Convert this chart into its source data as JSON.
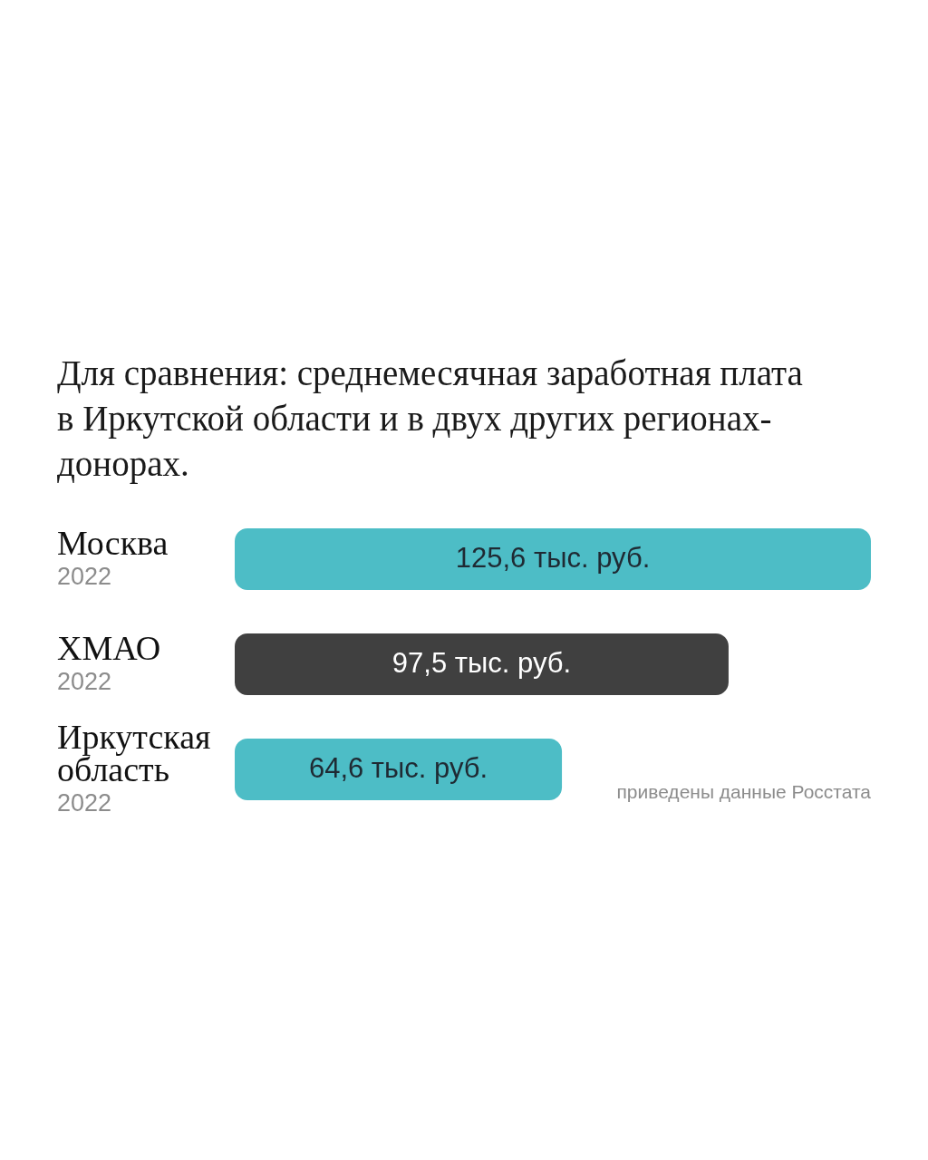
{
  "chart_data": {
    "type": "bar",
    "orientation": "horizontal",
    "title": "Для сравнения: среднемесячная заработная плата в Иркутской области и в двух других регионах-донорах.",
    "categories": [
      "Москва",
      "ХМАО",
      "Иркутская область"
    ],
    "values": [
      125.6,
      97.5,
      64.6
    ],
    "colors": [
      "#4dbdc6",
      "#404040",
      "#4dbdc6"
    ],
    "value_labels": [
      "125,6 тыс. руб.",
      "97,5 тыс. руб.",
      "64,6 тыс. руб."
    ],
    "annotations": [
      "2022",
      "2022",
      "2022",
      "приведены данные Росстата"
    ]
  }
}
